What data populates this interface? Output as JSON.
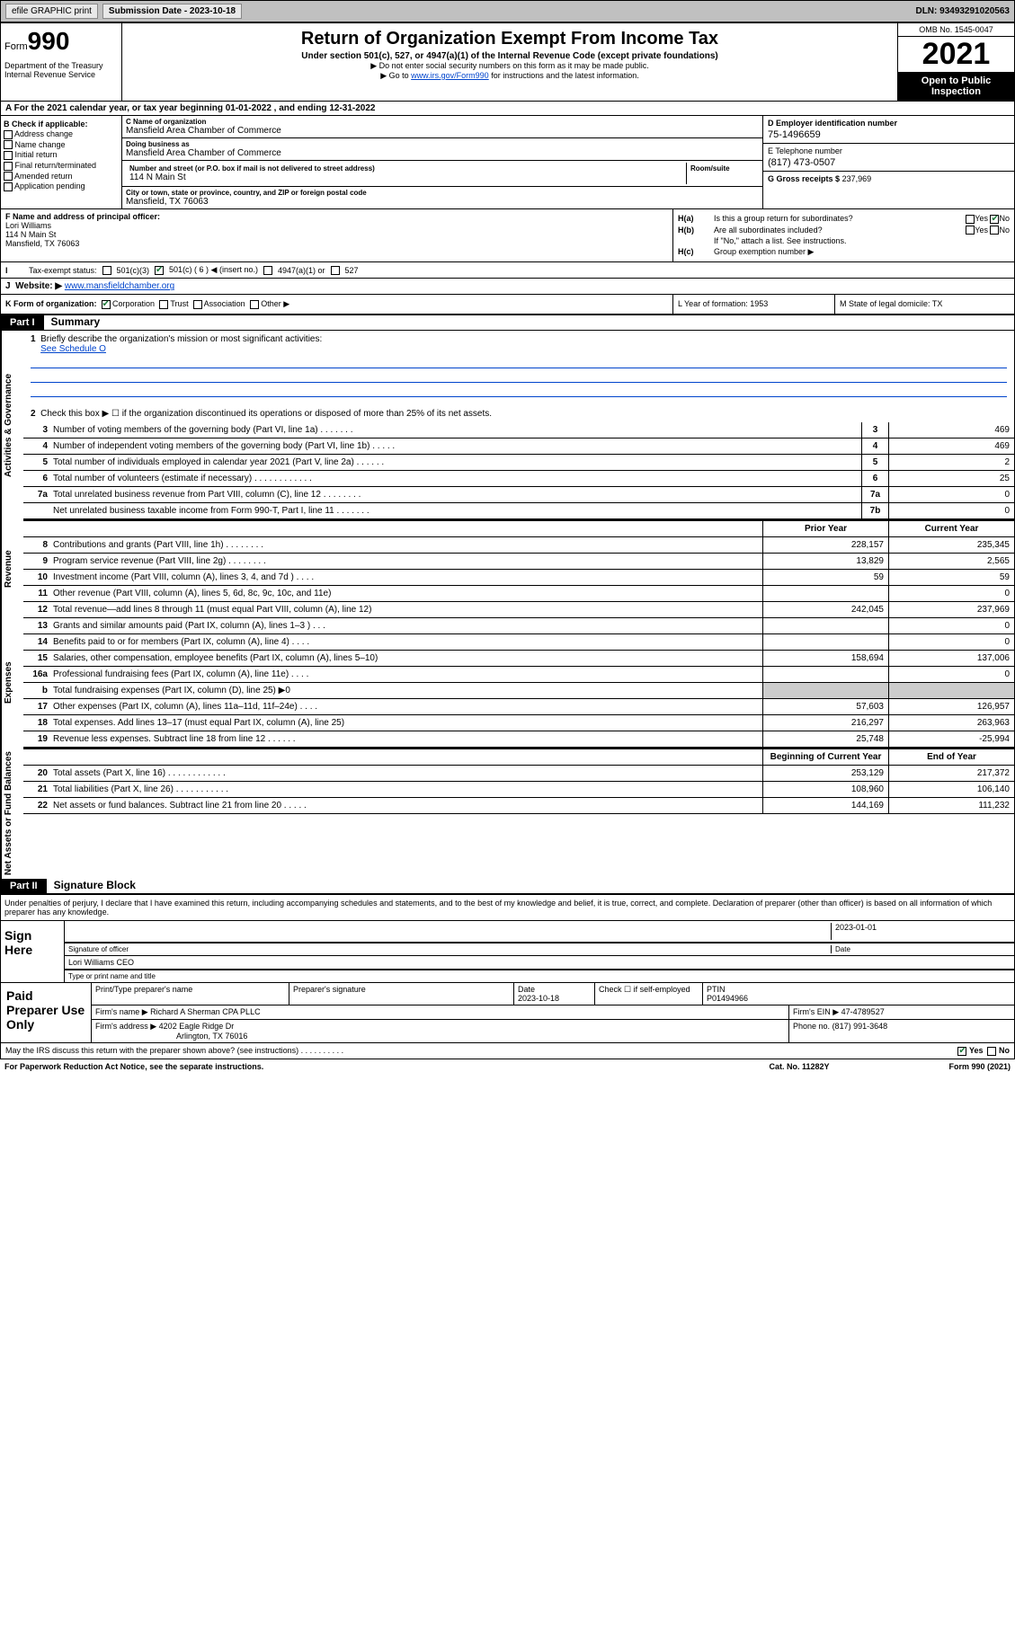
{
  "topbar": {
    "efile": "efile GRAPHIC print",
    "sub_label": "Submission Date - 2023-10-18",
    "dln": "DLN: 93493291020563"
  },
  "header": {
    "form_label": "Form",
    "form_num": "990",
    "dept": "Department of the Treasury",
    "irs": "Internal Revenue Service",
    "title": "Return of Organization Exempt From Income Tax",
    "subtitle": "Under section 501(c), 527, or 4947(a)(1) of the Internal Revenue Code (except private foundations)",
    "note1": "▶ Do not enter social security numbers on this form as it may be made public.",
    "note2_pre": "▶ Go to ",
    "note2_link": "www.irs.gov/Form990",
    "note2_post": " for instructions and the latest information.",
    "omb": "OMB No. 1545-0047",
    "year": "2021",
    "inspect": "Open to Public Inspection"
  },
  "line_a": "A For the 2021 calendar year, or tax year beginning 01-01-2022    , and ending 12-31-2022",
  "col_b": {
    "hdr": "B Check if applicable:",
    "items": [
      "Address change",
      "Name change",
      "Initial return",
      "Final return/terminated",
      "Amended return",
      "Application pending"
    ]
  },
  "col_c": {
    "name_lbl": "C Name of organization",
    "name": "Mansfield Area Chamber of Commerce",
    "dba_lbl": "Doing business as",
    "dba": "Mansfield Area Chamber of Commerce",
    "addr_lbl": "Number and street (or P.O. box if mail is not delivered to street address)",
    "addr": "114 N Main St",
    "suite_lbl": "Room/suite",
    "city_lbl": "City or town, state or province, country, and ZIP or foreign postal code",
    "city": "Mansfield, TX   76063"
  },
  "col_de": {
    "d_lbl": "D Employer identification number",
    "d_val": "75-1496659",
    "e_lbl": "E Telephone number",
    "e_val": "(817) 473-0507",
    "g_lbl": "G Gross receipts $",
    "g_val": "237,969"
  },
  "block_f": {
    "lbl": "F Name and address of principal officer:",
    "name": "Lori Williams",
    "addr1": "114 N Main St",
    "addr2": "Mansfield, TX   76063"
  },
  "block_h": {
    "ha": "Is this a group return for subordinates?",
    "hb": "Are all subordinates included?",
    "hb_note": "If \"No,\" attach a list. See instructions.",
    "hc": "Group exemption number ▶",
    "yes": "Yes",
    "no": "No"
  },
  "tax_status": {
    "lead": "I",
    "lbl": "Tax-exempt status:",
    "opts": [
      "501(c)(3)",
      "501(c) ( 6 ) ◀ (insert no.)",
      "4947(a)(1) or",
      "527"
    ]
  },
  "website": {
    "lead": "J",
    "lbl": "Website: ▶",
    "val": "www.mansfieldchamber.org"
  },
  "klm": {
    "k": "K Form of organization:",
    "k_opts": [
      "Corporation",
      "Trust",
      "Association",
      "Other ▶"
    ],
    "l": "L Year of formation: 1953",
    "m": "M State of legal domicile: TX"
  },
  "part1": {
    "hdr": "Part I",
    "title": "Summary",
    "side_gov": "Activities & Governance",
    "side_rev": "Revenue",
    "side_exp": "Expenses",
    "side_net": "Net Assets or Fund Balances",
    "q1": "Briefly describe the organization's mission or most significant activities:",
    "q1_link": "See Schedule O",
    "q2": "Check this box ▶ ☐  if the organization discontinued its operations or disposed of more than 25% of its net assets.",
    "prior": "Prior Year",
    "current": "Current Year",
    "begin": "Beginning of Current Year",
    "end": "End of Year",
    "lines_gov": [
      {
        "n": "3",
        "t": "Number of voting members of the governing body (Part VI, line 1a)   .    .    .    .    .    .    .",
        "b": "3",
        "v": "469"
      },
      {
        "n": "4",
        "t": "Number of independent voting members of the governing body (Part VI, line 1b)   .    .    .    .    .",
        "b": "4",
        "v": "469"
      },
      {
        "n": "5",
        "t": "Total number of individuals employed in calendar year 2021 (Part V, line 2a)   .    .    .    .    .    .",
        "b": "5",
        "v": "2"
      },
      {
        "n": "6",
        "t": "Total number of volunteers (estimate if necessary)   .    .    .    .    .    .    .    .    .    .    .    .",
        "b": "6",
        "v": "25"
      },
      {
        "n": "7a",
        "t": "Total unrelated business revenue from Part VIII, column (C), line 12   .    .    .    .    .    .    .    .",
        "b": "7a",
        "v": "0"
      },
      {
        "n": "",
        "t": "Net unrelated business taxable income from Form 990-T, Part I, line 11   .    .    .    .    .    .    .",
        "b": "7b",
        "v": "0"
      }
    ],
    "lines_rev": [
      {
        "n": "8",
        "t": "Contributions and grants (Part VIII, line 1h)   .    .    .    .    .    .    .    .",
        "p": "228,157",
        "c": "235,345"
      },
      {
        "n": "9",
        "t": "Program service revenue (Part VIII, line 2g)   .    .    .    .    .    .    .    .",
        "p": "13,829",
        "c": "2,565"
      },
      {
        "n": "10",
        "t": "Investment income (Part VIII, column (A), lines 3, 4, and 7d )   .    .    .    .",
        "p": "59",
        "c": "59"
      },
      {
        "n": "11",
        "t": "Other revenue (Part VIII, column (A), lines 5, 6d, 8c, 9c, 10c, and 11e)",
        "p": "",
        "c": "0"
      },
      {
        "n": "12",
        "t": "Total revenue—add lines 8 through 11 (must equal Part VIII, column (A), line 12)",
        "p": "242,045",
        "c": "237,969"
      }
    ],
    "lines_exp": [
      {
        "n": "13",
        "t": "Grants and similar amounts paid (Part IX, column (A), lines 1–3 )   .    .    .",
        "p": "",
        "c": "0"
      },
      {
        "n": "14",
        "t": "Benefits paid to or for members (Part IX, column (A), line 4)   .    .    .    .",
        "p": "",
        "c": "0"
      },
      {
        "n": "15",
        "t": "Salaries, other compensation, employee benefits (Part IX, column (A), lines 5–10)",
        "p": "158,694",
        "c": "137,006"
      },
      {
        "n": "16a",
        "t": "Professional fundraising fees (Part IX, column (A), line 11e)   .    .    .    .",
        "p": "",
        "c": "0"
      },
      {
        "n": "b",
        "t": "Total fundraising expenses (Part IX, column (D), line 25) ▶0",
        "p": "shaded",
        "c": "shaded"
      },
      {
        "n": "17",
        "t": "Other expenses (Part IX, column (A), lines 11a–11d, 11f–24e)   .    .    .    .",
        "p": "57,603",
        "c": "126,957"
      },
      {
        "n": "18",
        "t": "Total expenses. Add lines 13–17 (must equal Part IX, column (A), line 25)",
        "p": "216,297",
        "c": "263,963"
      },
      {
        "n": "19",
        "t": "Revenue less expenses. Subtract line 18 from line 12   .    .    .    .    .    .",
        "p": "25,748",
        "c": "-25,994"
      }
    ],
    "lines_net": [
      {
        "n": "20",
        "t": "Total assets (Part X, line 16)   .    .    .    .    .    .    .    .    .    .    .    .",
        "p": "253,129",
        "c": "217,372"
      },
      {
        "n": "21",
        "t": "Total liabilities (Part X, line 26)   .    .    .    .    .    .    .    .    .    .    .",
        "p": "108,960",
        "c": "106,140"
      },
      {
        "n": "22",
        "t": "Net assets or fund balances. Subtract line 21 from line 20   .    .    .    .    .",
        "p": "144,169",
        "c": "111,232"
      }
    ]
  },
  "part2": {
    "hdr": "Part II",
    "title": "Signature Block",
    "decl": "Under penalties of perjury, I declare that I have examined this return, including accompanying schedules and statements, and to the best of my knowledge and belief, it is true, correct, and complete. Declaration of preparer (other than officer) is based on all information of which preparer has any knowledge.",
    "sign_here": "Sign Here",
    "sig_officer": "Signature of officer",
    "sig_date_lbl": "Date",
    "sig_date": "2023-01-01",
    "sig_name": "Lori Williams CEO",
    "sig_name_lbl": "Type or print name and title",
    "paid": "Paid Preparer Use Only",
    "prep_name_lbl": "Print/Type preparer's name",
    "prep_sig_lbl": "Preparer's signature",
    "prep_date_lbl": "Date",
    "prep_date": "2023-10-18",
    "prep_check": "Check ☐ if self-employed",
    "ptin_lbl": "PTIN",
    "ptin": "P01494966",
    "firm_name_lbl": "Firm's name    ▶",
    "firm_name": "Richard A Sherman CPA PLLC",
    "firm_ein_lbl": "Firm's EIN ▶",
    "firm_ein": "47-4789527",
    "firm_addr_lbl": "Firm's address ▶",
    "firm_addr1": "4202 Eagle Ridge Dr",
    "firm_addr2": "Arlington, TX   76016",
    "firm_phone_lbl": "Phone no.",
    "firm_phone": "(817) 991-3648"
  },
  "footer": {
    "discuss": "May the IRS discuss this return with the preparer shown above? (see instructions)   .    .    .    .    .    .    .    .    .    .",
    "yes": "Yes",
    "no": "No",
    "paperwork": "For Paperwork Reduction Act Notice, see the separate instructions.",
    "cat": "Cat. No. 11282Y",
    "form": "Form 990 (2021)"
  }
}
